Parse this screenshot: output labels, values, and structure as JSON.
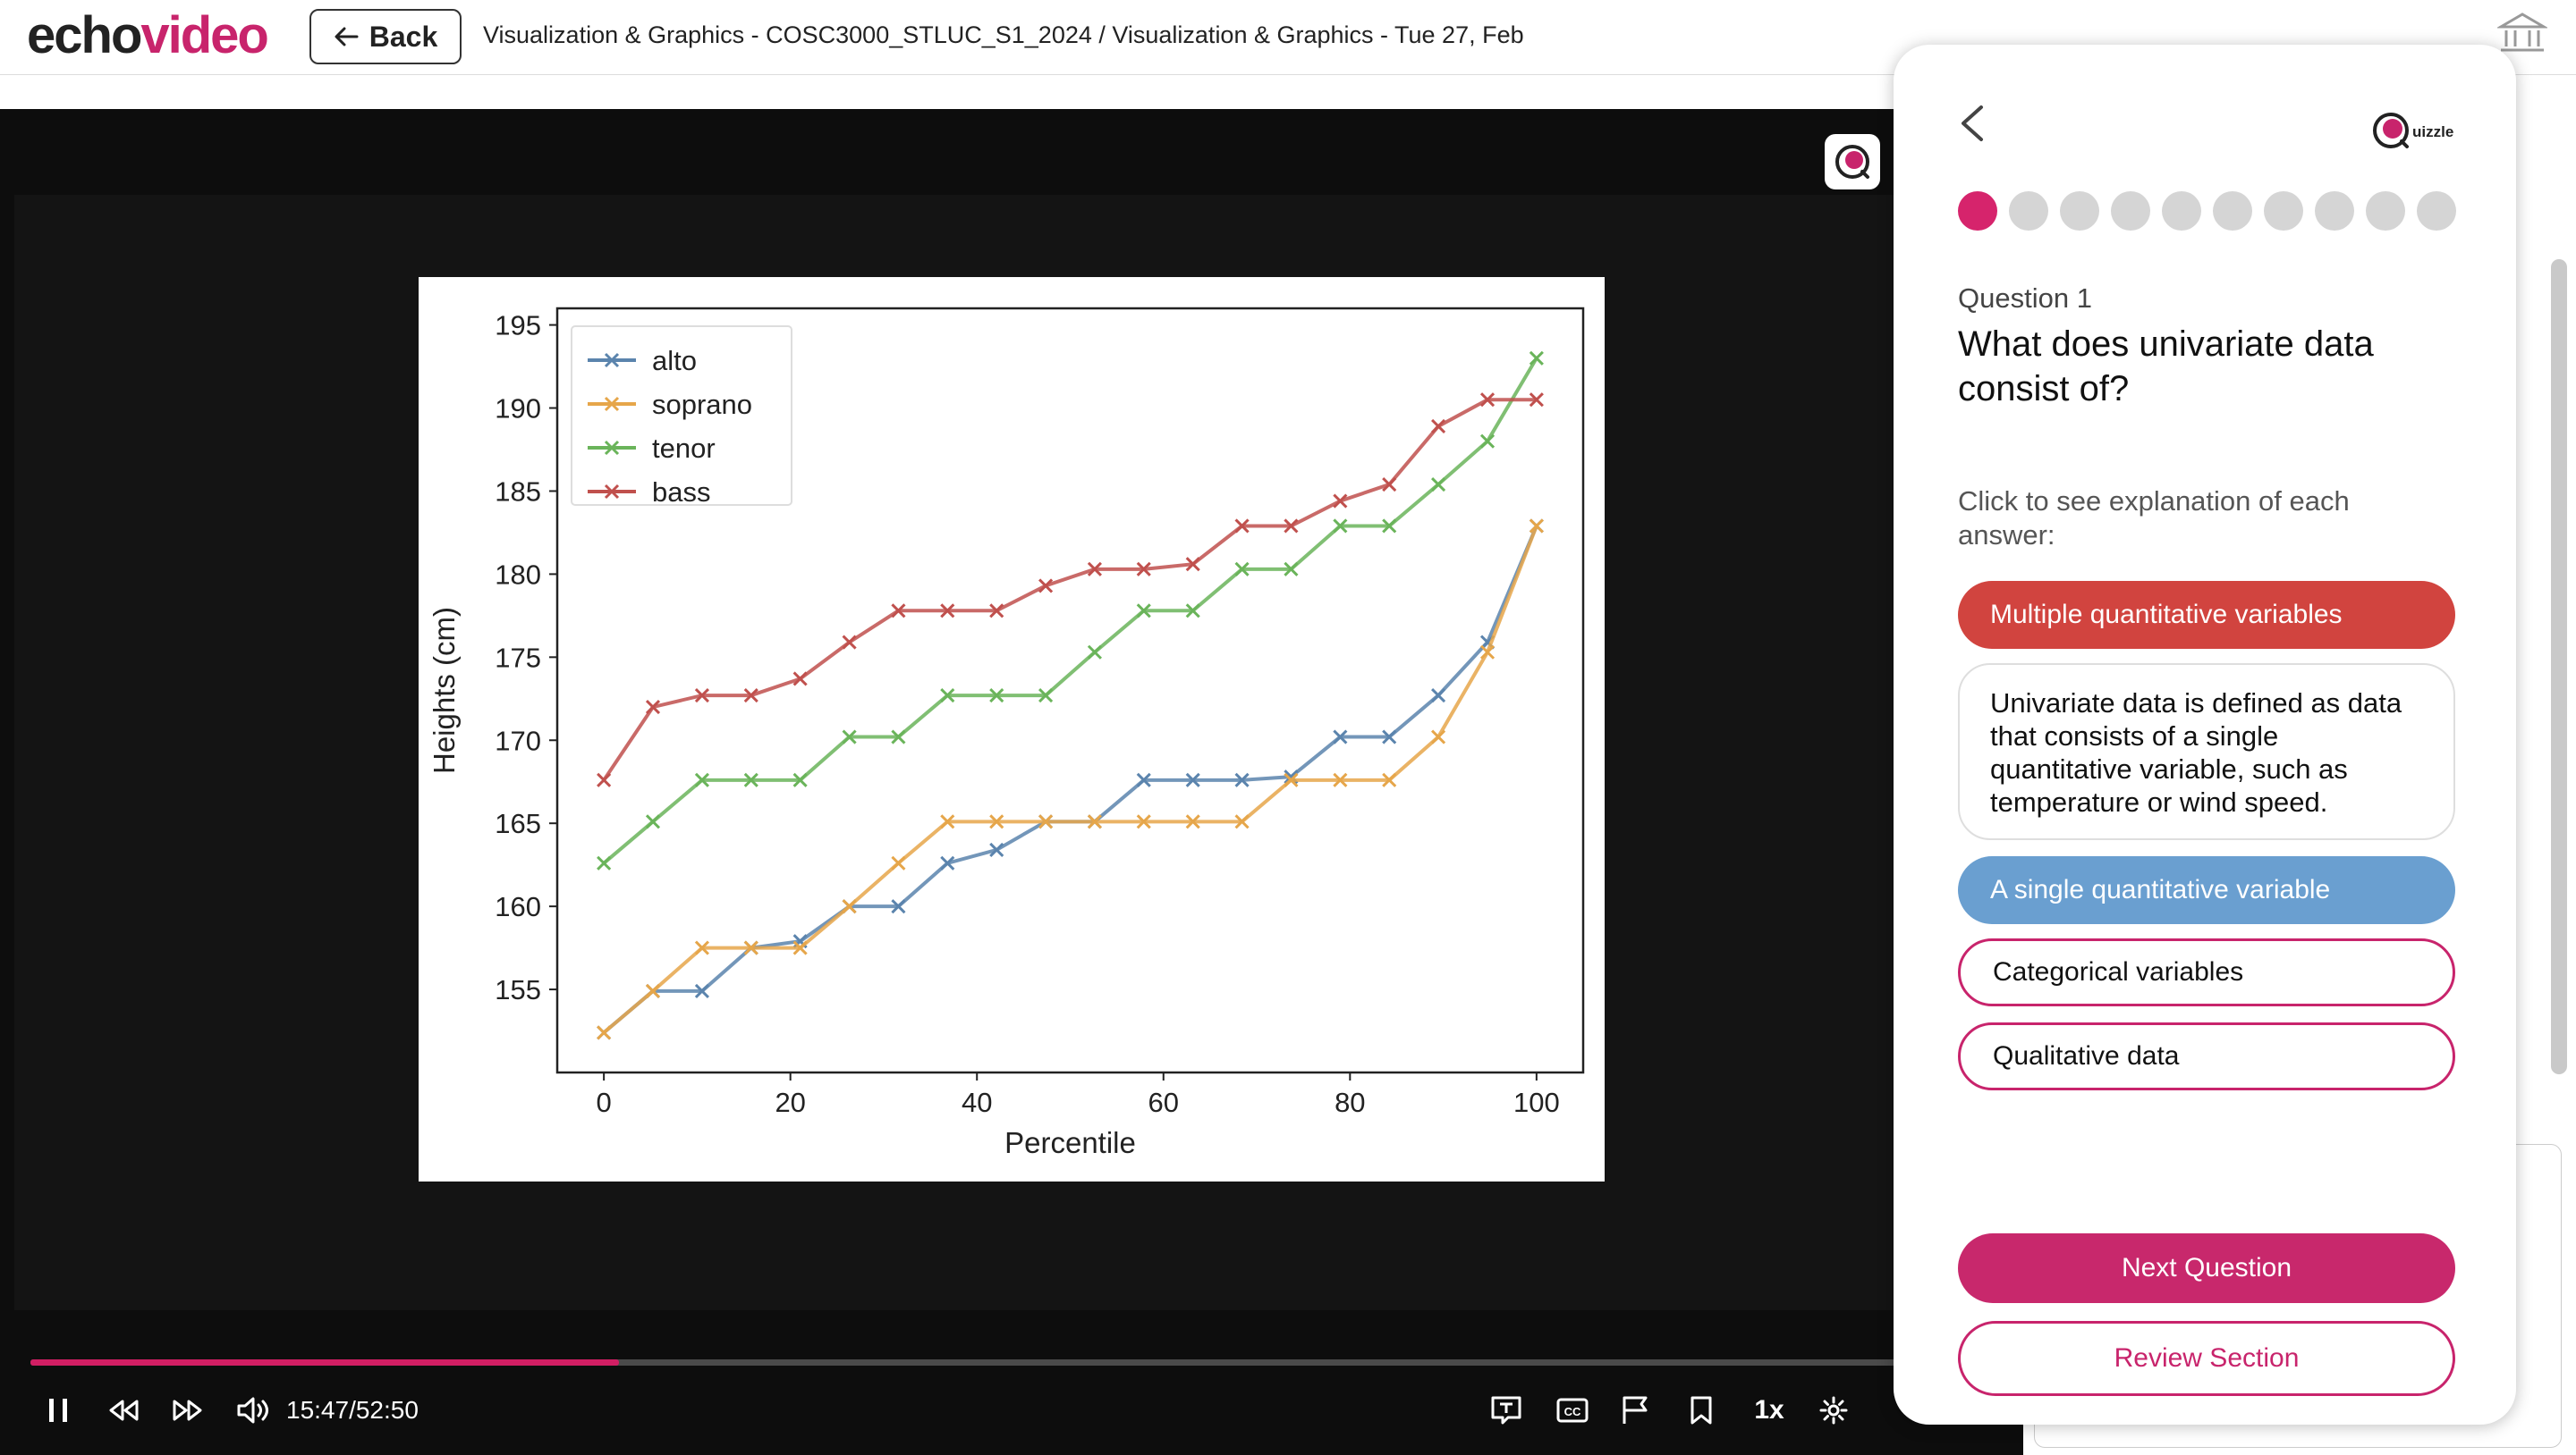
{
  "header": {
    "logo_part1": "echo",
    "logo_part2": "video",
    "back_label": "Back",
    "breadcrumb": "Visualization & Graphics - COSC3000_STLUC_S1_2024 / Visualization & Graphics - Tue 27, Feb"
  },
  "player": {
    "time": "15:47/52:50",
    "speed": "1x",
    "progress": 0.299
  },
  "quiz": {
    "question_label": "Question 1",
    "question_text": "What does univariate data consist of?",
    "instruction": "Click to see explanation of each answer:",
    "answers": [
      {
        "label": "Multiple quantitative variables",
        "state": "incorrect"
      },
      {
        "label": "A single quantitative variable",
        "state": "correct"
      },
      {
        "label": "Categorical variables",
        "state": "default"
      },
      {
        "label": "Qualitative data",
        "state": "default"
      }
    ],
    "explanation": "Univariate data is defined as data that consists of a single quantitative variable, such as temperature or wind speed.",
    "progress_dots": 10,
    "current_dot": 0,
    "next_label": "Next Question",
    "review_label": "Review Section",
    "brand_text": "uizzle",
    "colors": {
      "brand": "#c8246c",
      "incorrect": "#d1443f",
      "correct": "#6a9fd0"
    }
  },
  "chart_data": {
    "type": "line",
    "xlabel": "Percentile",
    "ylabel": "Heights (cm)",
    "xlim": [
      -5,
      105
    ],
    "ylim": [
      150,
      196
    ],
    "xticks": [
      0,
      20,
      40,
      60,
      80,
      100
    ],
    "yticks": [
      155,
      160,
      165,
      170,
      175,
      180,
      185,
      190,
      195
    ],
    "legend_position": "top-left",
    "x": [
      0,
      5.26,
      10.53,
      15.79,
      21.05,
      26.32,
      31.58,
      36.84,
      42.11,
      47.37,
      52.63,
      57.89,
      63.16,
      68.42,
      73.68,
      78.95,
      84.21,
      89.47,
      94.74,
      100
    ],
    "series": [
      {
        "name": "alto",
        "color": "#5b84ad",
        "values": [
          152.4,
          154.9,
          154.9,
          157.5,
          157.9,
          160.0,
          160.0,
          162.6,
          163.4,
          165.1,
          165.1,
          167.6,
          167.6,
          167.6,
          167.8,
          170.2,
          170.2,
          172.7,
          175.9,
          182.9
        ]
      },
      {
        "name": "soprano",
        "color": "#e6a64a",
        "values": [
          152.4,
          154.9,
          157.5,
          157.5,
          157.5,
          160.0,
          162.6,
          165.1,
          165.1,
          165.1,
          165.1,
          165.1,
          165.1,
          165.1,
          167.6,
          167.6,
          167.6,
          170.2,
          175.3,
          182.9
        ]
      },
      {
        "name": "tenor",
        "color": "#6ab45a",
        "values": [
          162.6,
          165.1,
          167.6,
          167.6,
          167.6,
          170.2,
          170.2,
          172.7,
          172.7,
          172.7,
          175.3,
          177.8,
          177.8,
          180.3,
          180.3,
          182.9,
          182.9,
          185.4,
          188.0,
          193.0
        ]
      },
      {
        "name": "bass",
        "color": "#c0504d",
        "values": [
          167.6,
          172.0,
          172.7,
          172.7,
          173.7,
          175.9,
          177.8,
          177.8,
          177.8,
          179.3,
          180.3,
          180.3,
          180.6,
          182.9,
          182.9,
          184.4,
          185.4,
          188.9,
          190.5,
          190.5
        ]
      }
    ]
  }
}
